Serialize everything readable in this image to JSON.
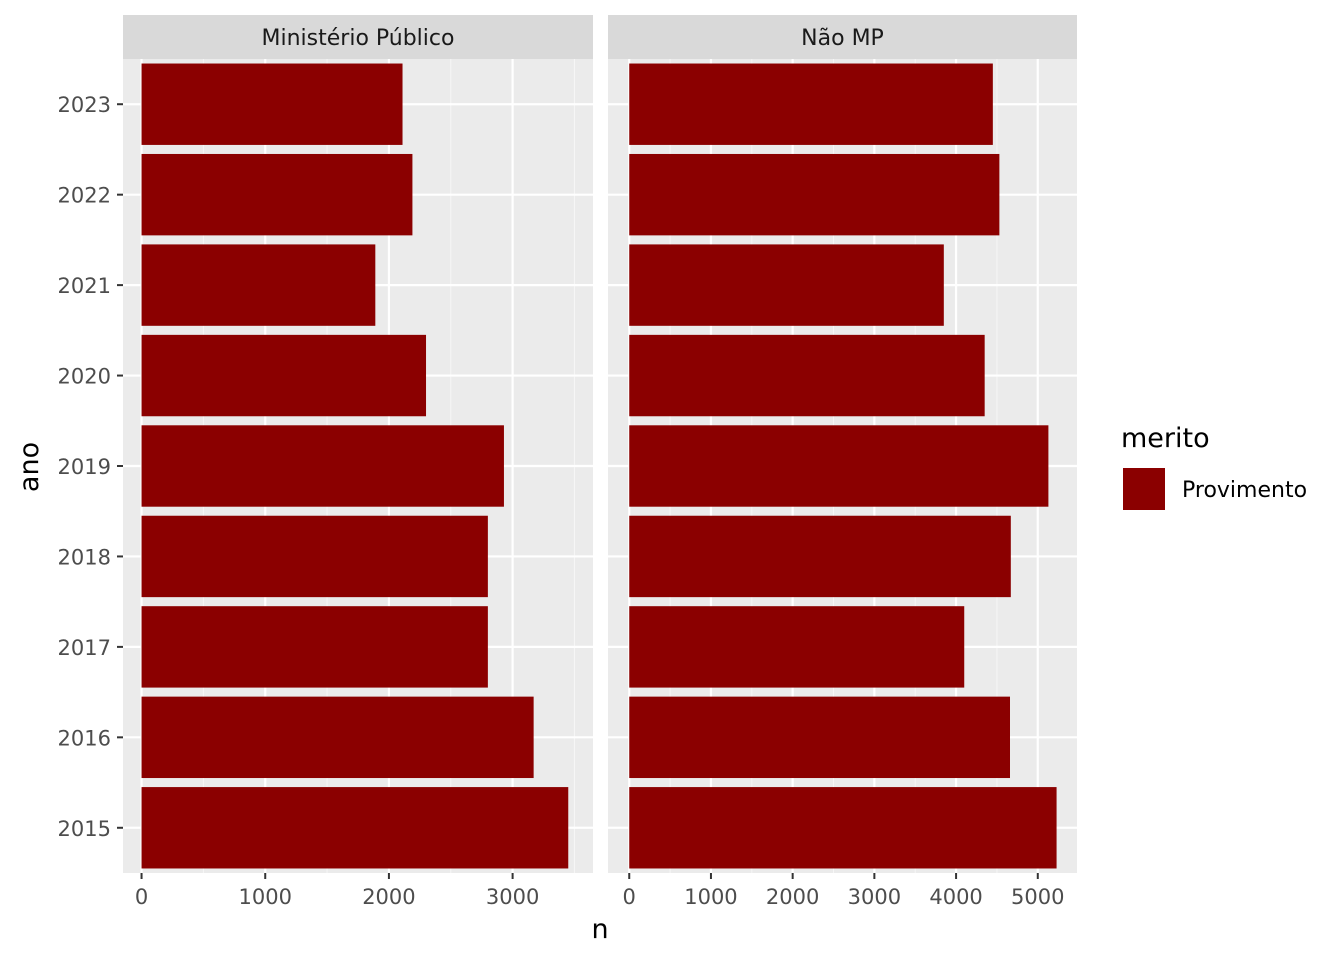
{
  "colors": {
    "bar": "#8B0000",
    "panel_bg": "#EBEBEB",
    "strip_bg": "#D9D9D9",
    "grid_major": "#FFFFFF",
    "tick": "#333333"
  },
  "chart_data": {
    "type": "bar",
    "orientation": "horizontal",
    "facet_by": "panel",
    "categories": [
      "2015",
      "2016",
      "2017",
      "2018",
      "2019",
      "2020",
      "2021",
      "2022",
      "2023"
    ],
    "xlabel": "n",
    "ylabel": "ano",
    "legend": {
      "title": "merito",
      "position": "right",
      "items": [
        {
          "label": "Provimento",
          "color": "#8B0000"
        }
      ]
    },
    "grid": true,
    "panels": [
      {
        "title": "Ministério Público",
        "xlim": [
          -150,
          3650
        ],
        "xticks": [
          0,
          1000,
          2000,
          3000
        ],
        "series": [
          {
            "name": "Provimento",
            "values": [
              3450,
              3170,
              2800,
              2800,
              2930,
              2300,
              1890,
              2190,
              2110
            ]
          }
        ]
      },
      {
        "title": "Não MP",
        "xlim": [
          -260,
          5480
        ],
        "xticks": [
          0,
          1000,
          2000,
          3000,
          4000,
          5000
        ],
        "series": [
          {
            "name": "Provimento",
            "values": [
              5230,
              4660,
              4100,
              4670,
              5130,
              4350,
              3850,
              4530,
              4450
            ]
          }
        ]
      }
    ]
  }
}
